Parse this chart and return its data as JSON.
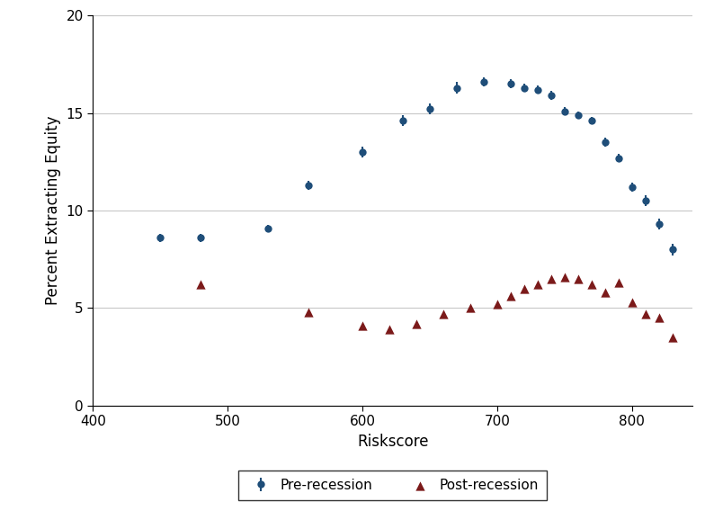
{
  "pre_recession": {
    "x": [
      450,
      480,
      530,
      560,
      600,
      630,
      650,
      670,
      690,
      710,
      720,
      730,
      740,
      750,
      760,
      770,
      780,
      790,
      800,
      810,
      820,
      830
    ],
    "y": [
      8.6,
      8.6,
      9.1,
      11.3,
      13.0,
      14.6,
      15.2,
      16.3,
      16.6,
      16.5,
      16.3,
      16.2,
      15.9,
      15.1,
      14.9,
      14.6,
      13.5,
      12.7,
      11.2,
      10.5,
      9.3,
      8.0
    ],
    "yerr": [
      0.22,
      0.22,
      0.18,
      0.22,
      0.28,
      0.28,
      0.28,
      0.28,
      0.22,
      0.22,
      0.22,
      0.22,
      0.22,
      0.22,
      0.18,
      0.18,
      0.22,
      0.22,
      0.25,
      0.28,
      0.28,
      0.3
    ]
  },
  "post_recession": {
    "x": [
      480,
      560,
      600,
      620,
      640,
      660,
      680,
      700,
      710,
      720,
      730,
      740,
      750,
      760,
      770,
      780,
      790,
      800,
      810,
      820,
      830
    ],
    "y": [
      6.2,
      4.8,
      4.1,
      3.9,
      4.2,
      4.7,
      5.0,
      5.2,
      5.6,
      6.0,
      6.2,
      6.5,
      6.6,
      6.5,
      6.2,
      5.8,
      6.3,
      5.3,
      4.7,
      4.5,
      3.5
    ]
  },
  "pre_color": "#1f4e79",
  "post_color": "#7b1a1a",
  "xlabel": "Riskscore",
  "ylabel": "Percent Extracting Equity",
  "xlim": [
    400,
    845
  ],
  "ylim": [
    0,
    20
  ],
  "xticks": [
    400,
    500,
    600,
    700,
    800
  ],
  "yticks": [
    0,
    5,
    10,
    15,
    20
  ],
  "grid_color": "#c8c8c8",
  "legend_labels": [
    "Pre-recession",
    "Post-recession"
  ],
  "background_color": "#ffffff",
  "figsize": [
    7.94,
    5.78
  ],
  "dpi": 100
}
